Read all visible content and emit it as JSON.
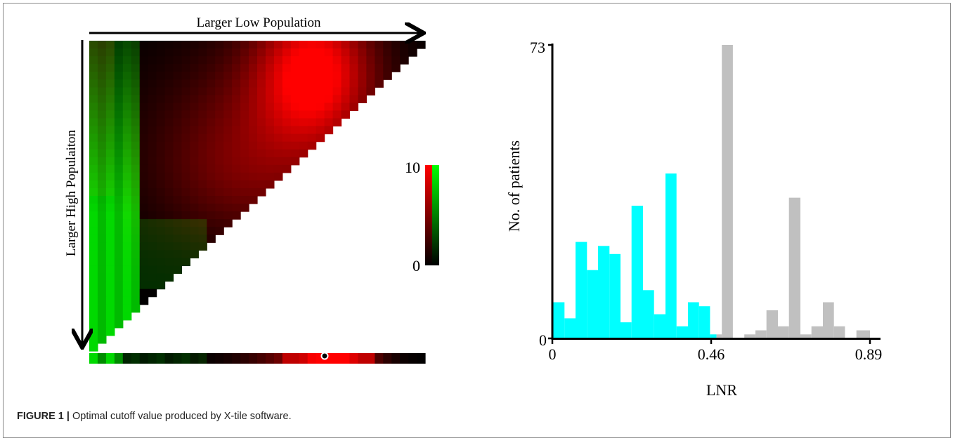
{
  "figure": {
    "caption_label": "FIGURE 1 |",
    "caption_text": " Optimal cutoff value produced by X-tile software."
  },
  "chart_data": [
    {
      "type": "heatmap",
      "title": "",
      "top_axis_label": "Larger Low Population",
      "left_axis_label": "Larger High Populaiton",
      "colorbar": {
        "min_label": "0",
        "max_label": "10",
        "colors": [
          "#000000",
          "#ff0000",
          "#00ff00"
        ]
      },
      "grid_size": 40,
      "cutoff_marker": "optimal cutoff point on the bottom bar"
    },
    {
      "type": "bar",
      "title": "",
      "xlabel": "LNR",
      "ylabel": "No. of patients",
      "xlim": [
        0,
        0.89
      ],
      "ylim": [
        0,
        73
      ],
      "x_ticks": [
        "0",
        "0.46",
        "0.89"
      ],
      "y_ticks": [
        "0",
        "73"
      ],
      "cutoff": 0.46,
      "colors": {
        "low": "#00ffff",
        "high": "#c0c0c0"
      },
      "series": [
        {
          "group": "low",
          "bins": [
            {
              "x0": 0.0,
              "x1": 0.034,
              "value": 9
            },
            {
              "x0": 0.034,
              "x1": 0.065,
              "value": 5
            },
            {
              "x0": 0.065,
              "x1": 0.097,
              "value": 24
            },
            {
              "x0": 0.097,
              "x1": 0.128,
              "value": 17
            },
            {
              "x0": 0.128,
              "x1": 0.16,
              "value": 23
            },
            {
              "x0": 0.16,
              "x1": 0.191,
              "value": 21
            },
            {
              "x0": 0.191,
              "x1": 0.222,
              "value": 4
            },
            {
              "x0": 0.222,
              "x1": 0.254,
              "value": 33
            },
            {
              "x0": 0.254,
              "x1": 0.285,
              "value": 12
            },
            {
              "x0": 0.285,
              "x1": 0.317,
              "value": 6
            },
            {
              "x0": 0.317,
              "x1": 0.348,
              "value": 41
            },
            {
              "x0": 0.348,
              "x1": 0.38,
              "value": 3
            },
            {
              "x0": 0.38,
              "x1": 0.411,
              "value": 9
            },
            {
              "x0": 0.411,
              "x1": 0.442,
              "value": 8
            },
            {
              "x0": 0.442,
              "x1": 0.46,
              "value": 1
            }
          ]
        },
        {
          "group": "high",
          "bins": [
            {
              "x0": 0.46,
              "x1": 0.475,
              "value": 1
            },
            {
              "x0": 0.475,
              "x1": 0.506,
              "value": 73
            },
            {
              "x0": 0.538,
              "x1": 0.569,
              "value": 1
            },
            {
              "x0": 0.569,
              "x1": 0.6,
              "value": 2
            },
            {
              "x0": 0.6,
              "x1": 0.632,
              "value": 7
            },
            {
              "x0": 0.632,
              "x1": 0.663,
              "value": 3
            },
            {
              "x0": 0.663,
              "x1": 0.695,
              "value": 35
            },
            {
              "x0": 0.695,
              "x1": 0.726,
              "value": 1
            },
            {
              "x0": 0.726,
              "x1": 0.758,
              "value": 3
            },
            {
              "x0": 0.758,
              "x1": 0.789,
              "value": 9
            },
            {
              "x0": 0.789,
              "x1": 0.82,
              "value": 3
            },
            {
              "x0": 0.852,
              "x1": 0.89,
              "value": 2
            }
          ]
        }
      ]
    }
  ]
}
